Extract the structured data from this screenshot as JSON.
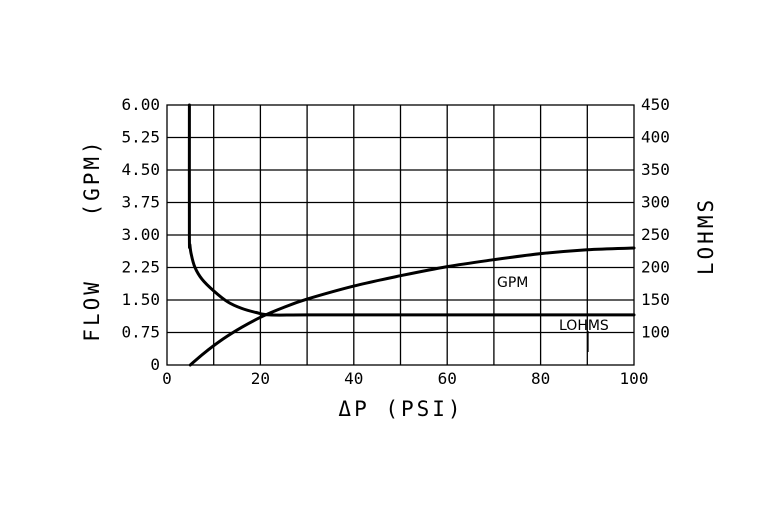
{
  "chart_data": {
    "type": "line",
    "x_axis": {
      "label": "ΔP (PSI)",
      "range": [
        0,
        100
      ],
      "ticks": [
        "0",
        "20",
        "40",
        "60",
        "80",
        "100"
      ],
      "grid_step": 10
    },
    "y_axis_left": {
      "label": "FLOW    (GPM)",
      "range": [
        0,
        6.0
      ],
      "ticks": [
        "0",
        "0.75",
        "1.50",
        "2.25",
        "3.00",
        "3.75",
        "4.50",
        "5.25",
        "6.00"
      ]
    },
    "y_axis_right": {
      "label": "LOHMS",
      "range": [
        50,
        450
      ],
      "ticks": [
        "100",
        "150",
        "200",
        "250",
        "300",
        "350",
        "400",
        "450"
      ]
    },
    "grid": true,
    "series": [
      {
        "name": "GPM",
        "axis": "left",
        "x": [
          5,
          8,
          12,
          16,
          20,
          25,
          30,
          40,
          50,
          60,
          70,
          80,
          90,
          100
        ],
        "y": [
          0,
          0.28,
          0.6,
          0.87,
          1.1,
          1.33,
          1.52,
          1.82,
          2.06,
          2.27,
          2.43,
          2.57,
          2.66,
          2.7
        ]
      },
      {
        "name": "LOHMS",
        "axis": "right",
        "x": [
          4.8,
          4.8,
          4.9,
          5.2,
          6,
          7.5,
          10,
          13,
          16,
          19,
          22,
          30,
          50,
          70,
          100
        ],
        "y": [
          450,
          250,
          235,
          220,
          200,
          182,
          164,
          147,
          137,
          131,
          127,
          127,
          127,
          127,
          127
        ]
      }
    ]
  }
}
